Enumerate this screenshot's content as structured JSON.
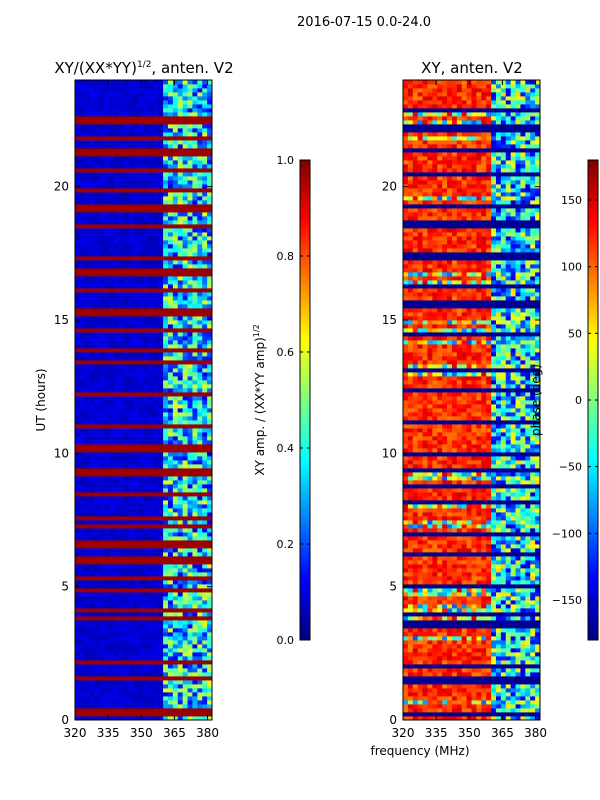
{
  "figure": {
    "suptitle": "2016-07-15 0.0-24.0",
    "shared_xlabel": "frequency (MHz)"
  },
  "colors": {
    "jet": [
      "#00007f",
      "#0000ff",
      "#007fff",
      "#00ffff",
      "#7fff7f",
      "#ffff00",
      "#ff7f00",
      "#ff0000",
      "#7f0000"
    ]
  },
  "chart_data": [
    {
      "type": "heatmap",
      "title_main": "XY/(XX*YY)",
      "title_sup": "1/2",
      "title_tail": ", anten. V2",
      "xlabel": "",
      "ylabel": "UT (hours)",
      "xlim": [
        320,
        382
      ],
      "ylim": [
        0,
        24
      ],
      "xticks": [
        320,
        335,
        350,
        365,
        380
      ],
      "yticks": [
        0,
        5,
        10,
        15,
        20
      ],
      "colorbar": {
        "label_main": "XY amp. / (XX*YY amp)",
        "label_sup": "1/2",
        "range": [
          0.0,
          1.0
        ],
        "ticks": [
          "0.0",
          "0.2",
          "0.4",
          "0.6",
          "0.8",
          "1.0"
        ]
      },
      "description_values": {
        "low_band_mhz": [
          320,
          360
        ],
        "low_band_value": 0.05,
        "high_band_mhz": [
          360,
          382
        ],
        "high_band_value_range": [
          0.1,
          0.6
        ],
        "saturated_rows_hours": [
          0.3,
          1.6,
          2.2,
          3.8,
          4.1,
          4.9,
          5.3,
          6.0,
          6.6,
          7.3,
          7.6,
          8.5,
          9.3,
          10.2,
          11.0,
          12.2,
          13.4,
          13.9,
          14.6,
          15.3,
          16.1,
          16.8,
          17.3,
          18.5,
          19.2,
          19.9,
          20.6,
          21.3,
          21.8,
          22.5
        ]
      }
    },
    {
      "type": "heatmap",
      "title": "XY, anten. V2",
      "xlabel": "frequency (MHz)",
      "ylabel": "",
      "xlim": [
        320,
        382
      ],
      "ylim": [
        0,
        24
      ],
      "xticks": [
        320,
        335,
        350,
        365,
        380
      ],
      "yticks": [
        0,
        5,
        10,
        15,
        20
      ],
      "colorbar": {
        "label": "phase (deg)",
        "range": [
          -180,
          180
        ],
        "ticks": [
          "−150",
          "−100",
          "−50",
          "0",
          "50",
          "100",
          "150"
        ]
      },
      "description_values": {
        "low_band_mhz": [
          320,
          360
        ],
        "low_band_phase_deg": 150,
        "high_band_mhz": [
          360,
          382
        ],
        "high_band_phase_deg_range": [
          -150,
          60
        ],
        "blank_rows_hours": [
          0.2,
          1.5,
          2.0,
          3.6,
          4.0,
          5.0,
          6.2,
          7.0,
          8.2,
          8.8,
          9.4,
          10.0,
          11.2,
          12.4,
          13.1,
          14.5,
          15.6,
          16.3,
          17.4,
          18.6,
          19.3,
          20.5,
          21.4,
          22.2,
          22.9
        ]
      }
    }
  ]
}
